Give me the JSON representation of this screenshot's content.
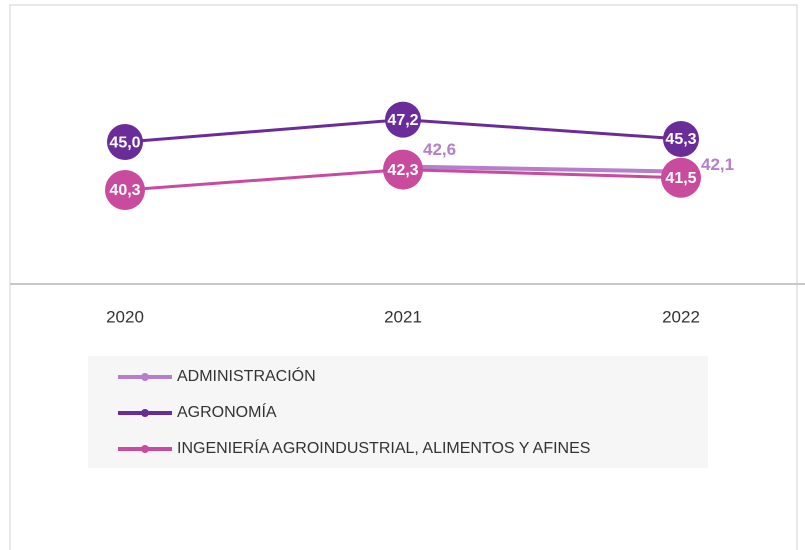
{
  "chart_data": {
    "type": "line",
    "categories": [
      "2020",
      "2021",
      "2022"
    ],
    "series": [
      {
        "name": "ADMINISTRACIÓN",
        "color": "#b57fcb",
        "values": [
          null,
          42.6,
          42.1
        ],
        "value_labels": [
          null,
          "42,6",
          "42,1"
        ]
      },
      {
        "name": "AGRONOMÍA",
        "color": "#6a2c99",
        "values": [
          45.0,
          47.2,
          45.3
        ],
        "value_labels": [
          "45,0",
          "47,2",
          "45,3"
        ]
      },
      {
        "name": "INGENIERÍA AGROINDUSTRIAL, ALIMENTOS Y AFINES",
        "color": "#c84b9e",
        "values": [
          40.3,
          42.3,
          41.5
        ],
        "value_labels": [
          "40,3",
          "42,3",
          "41,5"
        ]
      }
    ]
  }
}
